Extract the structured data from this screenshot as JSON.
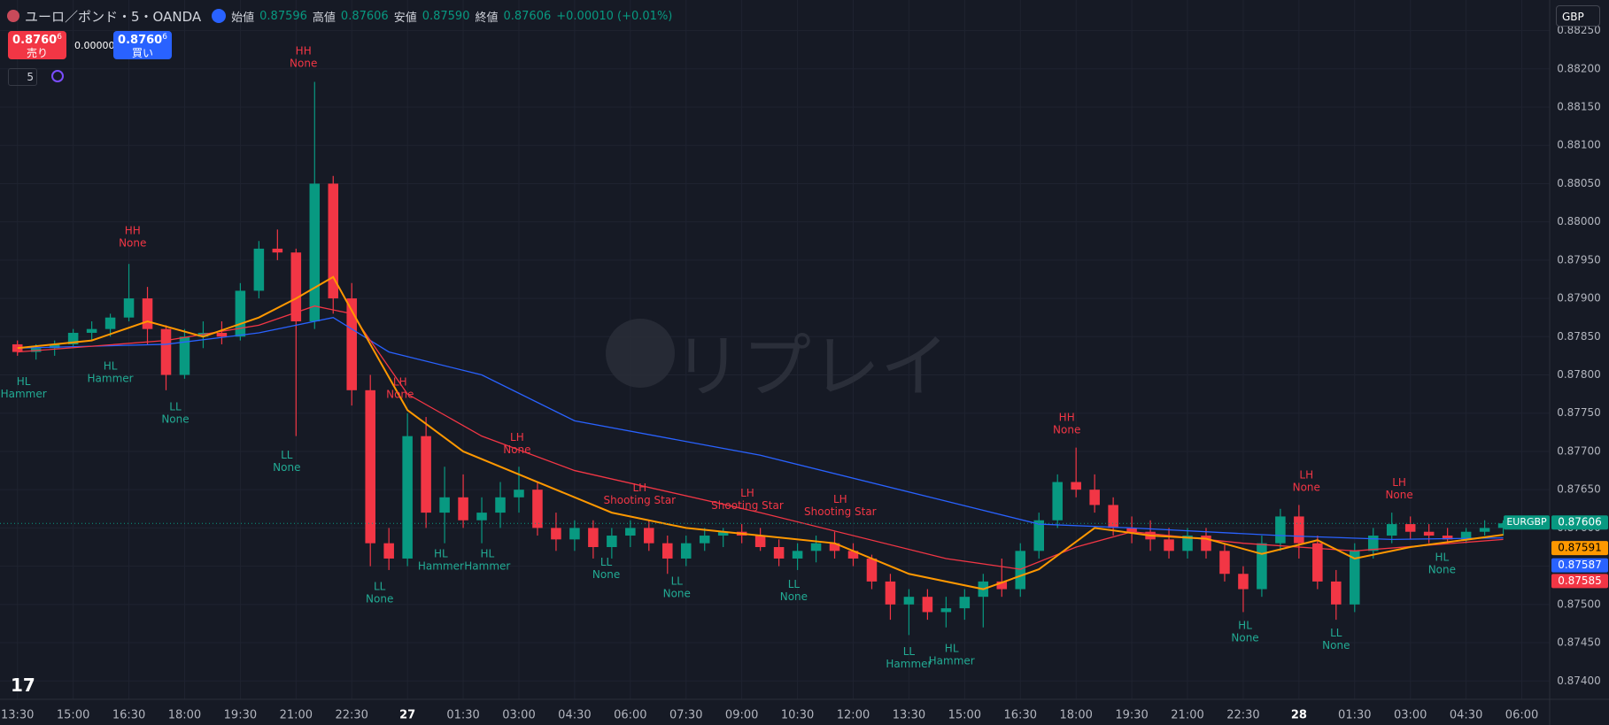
{
  "header": {
    "symbol": "ユーロ／ポンド・5・OANDA",
    "open_label": "始値",
    "open": "0.87596",
    "high_label": "高値",
    "high": "0.87606",
    "low_label": "安値",
    "low": "0.87590",
    "close_label": "終値",
    "close": "0.87606",
    "change": "+0.00010 (+0.01%)"
  },
  "trade": {
    "sell_main": "0.8760",
    "sell_sup": "6",
    "sell_label": "売り",
    "spread": "0.00000",
    "buy_main": "0.8760",
    "buy_sup": "6",
    "buy_label": "買い"
  },
  "interval": "5",
  "currency": "GBP",
  "watermark": "リプレイ",
  "chart_data": {
    "type": "candlestick",
    "up_color": "#089981",
    "down_color": "#f23645",
    "xlim": [
      -0.94,
      82.5
    ],
    "ylim": [
      0.87376,
      0.8829
    ],
    "xticks": [
      {
        "value": 0,
        "label": "13:30"
      },
      {
        "value": 3,
        "label": "15:00"
      },
      {
        "value": 6,
        "label": "16:30"
      },
      {
        "value": 9,
        "label": "18:00"
      },
      {
        "value": 12,
        "label": "19:30"
      },
      {
        "value": 15,
        "label": "21:00"
      },
      {
        "value": 18,
        "label": "22:30"
      },
      {
        "value": 21,
        "label": "27"
      },
      {
        "value": 24,
        "label": "01:30"
      },
      {
        "value": 27,
        "label": "03:00"
      },
      {
        "value": 30,
        "label": "04:30"
      },
      {
        "value": 33,
        "label": "06:00"
      },
      {
        "value": 36,
        "label": "07:30"
      },
      {
        "value": 39,
        "label": "09:00"
      },
      {
        "value": 42,
        "label": "10:30"
      },
      {
        "value": 45,
        "label": "12:00"
      },
      {
        "value": 48,
        "label": "13:30"
      },
      {
        "value": 51,
        "label": "15:00"
      },
      {
        "value": 54,
        "label": "16:30"
      },
      {
        "value": 57,
        "label": "18:00"
      },
      {
        "value": 60,
        "label": "19:30"
      },
      {
        "value": 63,
        "label": "21:00"
      },
      {
        "value": 66,
        "label": "22:30"
      },
      {
        "value": 69,
        "label": "28"
      },
      {
        "value": 72,
        "label": "01:30"
      },
      {
        "value": 75,
        "label": "03:00"
      },
      {
        "value": 78,
        "label": "04:30"
      },
      {
        "value": 81,
        "label": "06:00"
      }
    ],
    "yticks": [
      {
        "value": 0.874,
        "label": "0.87400"
      },
      {
        "value": 0.8745,
        "label": "0.87450"
      },
      {
        "value": 0.875,
        "label": "0.87500"
      },
      {
        "value": 0.8755,
        "label": "0.87550"
      },
      {
        "value": 0.876,
        "label": "0.87600"
      },
      {
        "value": 0.8765,
        "label": "0.87650"
      },
      {
        "value": 0.877,
        "label": "0.87700"
      },
      {
        "value": 0.8775,
        "label": "0.87750"
      },
      {
        "value": 0.878,
        "label": "0.87800"
      },
      {
        "value": 0.8785,
        "label": "0.87850"
      },
      {
        "value": 0.879,
        "label": "0.87900"
      },
      {
        "value": 0.8795,
        "label": "0.87950"
      },
      {
        "value": 0.88,
        "label": "0.88000"
      },
      {
        "value": 0.8805,
        "label": "0.88050"
      },
      {
        "value": 0.881,
        "label": "0.88100"
      },
      {
        "value": 0.8815,
        "label": "0.88150"
      },
      {
        "value": 0.882,
        "label": "0.88200"
      },
      {
        "value": 0.8825,
        "label": "0.88250"
      }
    ],
    "grid": true,
    "candles": [
      [
        0.8784,
        0.87845,
        0.87825,
        0.8783
      ],
      [
        0.8783,
        0.8784,
        0.8782,
        0.87835
      ],
      [
        0.87835,
        0.87845,
        0.87825,
        0.8784
      ],
      [
        0.8784,
        0.8786,
        0.87835,
        0.87855
      ],
      [
        0.87855,
        0.8787,
        0.87845,
        0.8786
      ],
      [
        0.8786,
        0.8788,
        0.8785,
        0.87875
      ],
      [
        0.87875,
        0.87945,
        0.8787,
        0.879
      ],
      [
        0.879,
        0.87915,
        0.8784,
        0.8786
      ],
      [
        0.8786,
        0.87865,
        0.8778,
        0.878
      ],
      [
        0.878,
        0.8786,
        0.87795,
        0.8785
      ],
      [
        0.8785,
        0.8787,
        0.87835,
        0.87855
      ],
      [
        0.87855,
        0.8787,
        0.8784,
        0.8785
      ],
      [
        0.8785,
        0.8792,
        0.87845,
        0.8791
      ],
      [
        0.8791,
        0.87975,
        0.879,
        0.87965
      ],
      [
        0.87965,
        0.8799,
        0.8795,
        0.8796
      ],
      [
        0.8796,
        0.87965,
        0.8772,
        0.8787
      ],
      [
        0.8787,
        0.88183,
        0.8786,
        0.8805
      ],
      [
        0.8805,
        0.8806,
        0.8788,
        0.879
      ],
      [
        0.879,
        0.8792,
        0.8776,
        0.8778
      ],
      [
        0.8778,
        0.878,
        0.8755,
        0.8758
      ],
      [
        0.8758,
        0.876,
        0.87545,
        0.8756
      ],
      [
        0.8756,
        0.8775,
        0.8755,
        0.8772
      ],
      [
        0.8772,
        0.87745,
        0.876,
        0.8762
      ],
      [
        0.8762,
        0.8768,
        0.8758,
        0.8764
      ],
      [
        0.8764,
        0.8767,
        0.876,
        0.8761
      ],
      [
        0.8761,
        0.8764,
        0.8758,
        0.8762
      ],
      [
        0.8762,
        0.8766,
        0.876,
        0.8764
      ],
      [
        0.8764,
        0.8768,
        0.8762,
        0.8765
      ],
      [
        0.8765,
        0.8766,
        0.8759,
        0.876
      ],
      [
        0.876,
        0.8762,
        0.8757,
        0.87585
      ],
      [
        0.87585,
        0.8761,
        0.8757,
        0.876
      ],
      [
        0.876,
        0.8761,
        0.8756,
        0.87575
      ],
      [
        0.87575,
        0.876,
        0.8756,
        0.8759
      ],
      [
        0.8759,
        0.8761,
        0.87575,
        0.876
      ],
      [
        0.876,
        0.8761,
        0.8757,
        0.8758
      ],
      [
        0.8758,
        0.8759,
        0.8754,
        0.8756
      ],
      [
        0.8756,
        0.8759,
        0.8755,
        0.8758
      ],
      [
        0.8758,
        0.876,
        0.8757,
        0.8759
      ],
      [
        0.8759,
        0.876,
        0.87575,
        0.87595
      ],
      [
        0.87595,
        0.87605,
        0.8758,
        0.8759
      ],
      [
        0.8759,
        0.876,
        0.8757,
        0.87575
      ],
      [
        0.87575,
        0.87585,
        0.8755,
        0.8756
      ],
      [
        0.8756,
        0.8758,
        0.87545,
        0.8757
      ],
      [
        0.8757,
        0.8759,
        0.87555,
        0.8758
      ],
      [
        0.8758,
        0.87595,
        0.8756,
        0.8757
      ],
      [
        0.8757,
        0.8758,
        0.8755,
        0.8756
      ],
      [
        0.8756,
        0.87565,
        0.8752,
        0.8753
      ],
      [
        0.8753,
        0.8754,
        0.8748,
        0.875
      ],
      [
        0.875,
        0.8752,
        0.8746,
        0.8751
      ],
      [
        0.8751,
        0.8752,
        0.8748,
        0.8749
      ],
      [
        0.8749,
        0.8751,
        0.8747,
        0.87495
      ],
      [
        0.87495,
        0.8752,
        0.8748,
        0.8751
      ],
      [
        0.8751,
        0.8754,
        0.8747,
        0.8753
      ],
      [
        0.8753,
        0.8756,
        0.8751,
        0.8752
      ],
      [
        0.8752,
        0.8758,
        0.8751,
        0.8757
      ],
      [
        0.8757,
        0.8762,
        0.8756,
        0.8761
      ],
      [
        0.8761,
        0.8767,
        0.876,
        0.8766
      ],
      [
        0.8766,
        0.87705,
        0.8764,
        0.8765
      ],
      [
        0.8765,
        0.8767,
        0.8762,
        0.8763
      ],
      [
        0.8763,
        0.8764,
        0.8759,
        0.876
      ],
      [
        0.876,
        0.87615,
        0.8758,
        0.87595
      ],
      [
        0.87595,
        0.8761,
        0.8757,
        0.87585
      ],
      [
        0.87585,
        0.876,
        0.8756,
        0.8757
      ],
      [
        0.8757,
        0.876,
        0.8756,
        0.8759
      ],
      [
        0.8759,
        0.876,
        0.8756,
        0.8757
      ],
      [
        0.8757,
        0.8758,
        0.8753,
        0.8754
      ],
      [
        0.8754,
        0.8755,
        0.8749,
        0.8752
      ],
      [
        0.8752,
        0.8759,
        0.8751,
        0.8758
      ],
      [
        0.8758,
        0.87625,
        0.8757,
        0.87615
      ],
      [
        0.87615,
        0.8763,
        0.8756,
        0.8758
      ],
      [
        0.8758,
        0.8759,
        0.8752,
        0.8753
      ],
      [
        0.8753,
        0.87545,
        0.8748,
        0.875
      ],
      [
        0.875,
        0.8758,
        0.8749,
        0.8757
      ],
      [
        0.8757,
        0.876,
        0.8756,
        0.8759
      ],
      [
        0.8759,
        0.8762,
        0.8758,
        0.87605
      ],
      [
        0.87605,
        0.87615,
        0.87585,
        0.87595
      ],
      [
        0.87595,
        0.87605,
        0.8758,
        0.8759
      ],
      [
        0.8759,
        0.876,
        0.8758,
        0.87585
      ],
      [
        0.87585,
        0.876,
        0.8758,
        0.87595
      ],
      [
        0.87595,
        0.8761,
        0.8759,
        0.876
      ],
      [
        0.876,
        0.8761,
        0.8759,
        0.87606
      ]
    ],
    "moving_averages": [
      {
        "color": "#2962ff",
        "x": [
          0,
          8,
          13,
          17,
          20,
          25,
          30,
          40,
          50,
          55,
          60,
          68,
          74,
          80
        ],
        "values": [
          0.87835,
          0.8784,
          0.87855,
          0.87875,
          0.8783,
          0.878,
          0.8774,
          0.87695,
          0.87635,
          0.87605,
          0.876,
          0.8759,
          0.87585,
          0.87587
        ]
      },
      {
        "color": "#f23645",
        "x": [
          0,
          8,
          13,
          16,
          18,
          21,
          25,
          30,
          40,
          50,
          54,
          57,
          60,
          66,
          72,
          80
        ],
        "values": [
          0.8783,
          0.87845,
          0.87865,
          0.8789,
          0.8788,
          0.87775,
          0.8772,
          0.87675,
          0.8762,
          0.8756,
          0.87546,
          0.87575,
          0.87595,
          0.8758,
          0.8757,
          0.87585
        ]
      },
      {
        "color": "#ff9800",
        "x": [
          0,
          4,
          7,
          10,
          13,
          15,
          17,
          19,
          21,
          24,
          28,
          32,
          36,
          40,
          44,
          48,
          52,
          55,
          58,
          61,
          64,
          67,
          70,
          72,
          75,
          80
        ],
        "values": [
          0.87835,
          0.87845,
          0.8787,
          0.8785,
          0.87875,
          0.879,
          0.87928,
          0.8784,
          0.87754,
          0.877,
          0.8766,
          0.8762,
          0.876,
          0.8759,
          0.8758,
          0.8754,
          0.8752,
          0.87546,
          0.876,
          0.8759,
          0.87586,
          0.87566,
          0.87584,
          0.8756,
          0.87575,
          0.87591
        ]
      }
    ],
    "pivots": [
      {
        "x": 0.33,
        "y": 0.87791,
        "label": "HL",
        "pattern": "Hammer"
      },
      {
        "x": 6.2,
        "y": 0.87988,
        "label": "HH",
        "pattern": "None"
      },
      {
        "x": 5,
        "y": 0.87811,
        "label": "HL",
        "pattern": "Hammer"
      },
      {
        "x": 8.5,
        "y": 0.87758,
        "label": "LL",
        "pattern": "None"
      },
      {
        "x": 15.4,
        "y": 0.88223,
        "label": "HH",
        "pattern": "None"
      },
      {
        "x": 14.5,
        "y": 0.87695,
        "label": "LL",
        "pattern": "None"
      },
      {
        "x": 20.6,
        "y": 0.8779,
        "label": "LH",
        "pattern": "None"
      },
      {
        "x": 19.5,
        "y": 0.87523,
        "label": "LL",
        "pattern": "None"
      },
      {
        "x": 22.8,
        "y": 0.87566,
        "label": "HL",
        "pattern": "Hammer"
      },
      {
        "x": 25.3,
        "y": 0.87566,
        "label": "HL",
        "pattern": "Hammer"
      },
      {
        "x": 26.9,
        "y": 0.87718,
        "label": "LH",
        "pattern": "None"
      },
      {
        "x": 33.5,
        "y": 0.87652,
        "label": "LH",
        "pattern": "Shooting Star"
      },
      {
        "x": 31.7,
        "y": 0.87555,
        "label": "LL",
        "pattern": "None"
      },
      {
        "x": 35.5,
        "y": 0.8753,
        "label": "LL",
        "pattern": "None"
      },
      {
        "x": 39.3,
        "y": 0.87645,
        "label": "LH",
        "pattern": "Shooting Star"
      },
      {
        "x": 41.8,
        "y": 0.87526,
        "label": "LL",
        "pattern": "None"
      },
      {
        "x": 44.3,
        "y": 0.87637,
        "label": "LH",
        "pattern": "Shooting Star"
      },
      {
        "x": 48,
        "y": 0.87438,
        "label": "LL",
        "pattern": "Hammer"
      },
      {
        "x": 50.3,
        "y": 0.87442,
        "label": "HL",
        "pattern": "Hammer"
      },
      {
        "x": 56.5,
        "y": 0.87744,
        "label": "HH",
        "pattern": "None"
      },
      {
        "x": 66.1,
        "y": 0.87472,
        "label": "HL",
        "pattern": "None"
      },
      {
        "x": 69.4,
        "y": 0.87669,
        "label": "LH",
        "pattern": "None"
      },
      {
        "x": 71,
        "y": 0.87462,
        "label": "LL",
        "pattern": "None"
      },
      {
        "x": 74.4,
        "y": 0.87659,
        "label": "LH",
        "pattern": "None"
      },
      {
        "x": 76.7,
        "y": 0.87561,
        "label": "HL",
        "pattern": "None"
      }
    ],
    "price_labels": [
      {
        "label": "EURGBP",
        "value": 0.87606,
        "color": "#089981"
      },
      {
        "value": 0.87591,
        "color": "#ff9800"
      },
      {
        "value": 0.87587,
        "color": "#2962ff"
      },
      {
        "value": 0.87585,
        "color": "#f23645"
      }
    ]
  }
}
